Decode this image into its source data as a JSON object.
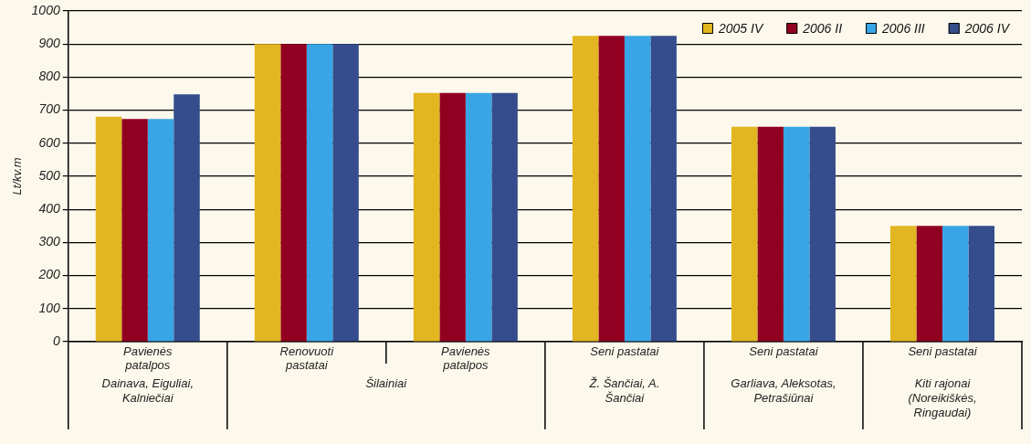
{
  "chart_data": {
    "type": "bar",
    "ylabel": "Lt/kv.m",
    "categories": [
      "Pavienės patalpos",
      "Renovuoti pastatai",
      "Pavienės patalpos",
      "Seni pastatai",
      "Seni pastatai",
      "Seni pastatai"
    ],
    "annotations": [
      "Dainava, Eiguliai, Kalniečiai",
      "Šilainiai",
      "Ž. Šančiai, A. Šančiai",
      "Garliava, Aleksotas, Petrašiūnai",
      "Kiti rajonai (Noreikiškės, Ringaudai)"
    ],
    "series": [
      {
        "name": "2005 IV",
        "color": "#e2b620",
        "values": [
          680,
          900,
          752,
          925,
          650,
          350
        ]
      },
      {
        "name": "2006 II",
        "color": "#910020",
        "values": [
          673,
          900,
          752,
          925,
          650,
          350
        ]
      },
      {
        "name": "2006 III",
        "color": "#38a6e6",
        "values": [
          673,
          900,
          752,
          925,
          650,
          350
        ]
      },
      {
        "name": "2006 IV",
        "color": "#354d8c",
        "values": [
          748,
          900,
          752,
          925,
          650,
          350
        ]
      }
    ],
    "ylim": [
      0,
      1000
    ],
    "yticks": [
      0,
      100,
      200,
      300,
      400,
      500,
      600,
      700,
      800,
      900,
      1000
    ],
    "grid": "y",
    "legend": "top right"
  }
}
